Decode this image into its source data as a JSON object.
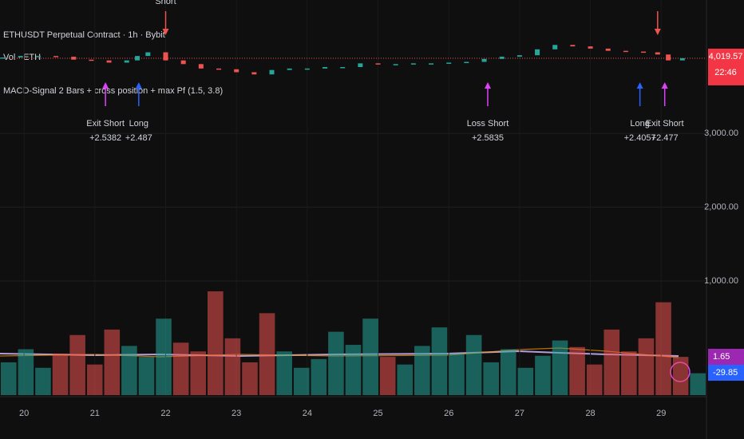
{
  "chart_data": {
    "type": "candlestick",
    "title": "ETHUSDT Perpetual Contract · 1h · Bybit",
    "volume_title": "Vol · ETH",
    "strategy_title": "MACD-Signal 2 Bars + cross position + max Pf (1.5, 3.8)",
    "x": [
      19.7,
      19.95,
      20.2,
      20.45,
      20.7,
      20.95,
      21.2,
      21.45,
      21.6,
      21.75,
      22.0,
      22.25,
      22.5,
      22.75,
      23.0,
      23.25,
      23.5,
      23.75,
      24.0,
      24.25,
      24.5,
      24.75,
      25.0,
      25.25,
      25.5,
      25.75,
      26.0,
      26.25,
      26.5,
      26.75,
      27.0,
      27.25,
      27.5,
      27.75,
      28.0,
      28.25,
      28.5,
      28.75,
      28.95,
      29.1,
      29.3
    ],
    "values": [
      4030,
      4050,
      4050,
      4040,
      4000,
      3990,
      3960,
      3990,
      4050,
      4100,
      3990,
      3940,
      3880,
      3870,
      3830,
      3800,
      3860,
      3880,
      3880,
      3900,
      3900,
      3950,
      3940,
      3940,
      3950,
      3950,
      3960,
      3970,
      4010,
      4040,
      4060,
      4140,
      4200,
      4180,
      4150,
      4120,
      4110,
      4100,
      4070,
      3990,
      4019.57
    ],
    "xlim": [
      19.66,
      29.64
    ],
    "xticks": [
      20,
      21,
      22,
      23,
      24,
      25,
      26,
      27,
      28,
      29
    ],
    "ylim": [
      -548,
      4809
    ],
    "yticks": [
      {
        "value": 1000,
        "label": "1,000.00"
      },
      {
        "value": 2000,
        "label": "2,000.00"
      },
      {
        "value": 3000,
        "label": "3,000.00"
      }
    ],
    "last_price": {
      "value": 4019.57,
      "label": "4,019.57"
    },
    "countdown": "22:46",
    "volume": [
      30,
      42,
      25,
      38,
      55,
      28,
      60,
      45,
      35,
      70,
      48,
      40,
      95,
      52,
      30,
      75,
      40,
      25,
      33,
      58,
      46,
      70,
      35,
      28,
      45,
      62,
      38,
      55,
      30,
      42,
      25,
      36,
      50,
      44,
      28,
      60,
      40,
      52,
      85,
      35,
      20
    ],
    "up_color": "#26a69a",
    "down_color": "#ef5350",
    "marker_color": "#e040fb",
    "long_color": "#2962ff",
    "trades": [
      {
        "side": "exit",
        "x": 21.15,
        "name": "Exit Short",
        "value": 2.5382,
        "value_label": "+2.5382"
      },
      {
        "side": "long",
        "x": 21.62,
        "name": "Long",
        "value": 2.487,
        "value_label": "+2.487"
      },
      {
        "side": "exit",
        "x": 26.55,
        "name": "Loss Short",
        "value": 2.5835,
        "value_label": "+2.5835"
      },
      {
        "side": "long",
        "x": 28.7,
        "name": "Long",
        "value": 2.4057,
        "value_label": "+2.4057"
      },
      {
        "side": "exit",
        "x": 29.05,
        "name": "Exit Short",
        "value": 2.477,
        "value_label": "+2.477"
      }
    ],
    "shorts": [
      {
        "x": 22.0,
        "name": "Short"
      },
      {
        "x": 28.95,
        "name": ""
      }
    ],
    "indicator_labels": [
      {
        "value": 1.65,
        "color": "#9c27b0"
      },
      {
        "value": -29.85,
        "color": "#2962ff"
      }
    ]
  }
}
